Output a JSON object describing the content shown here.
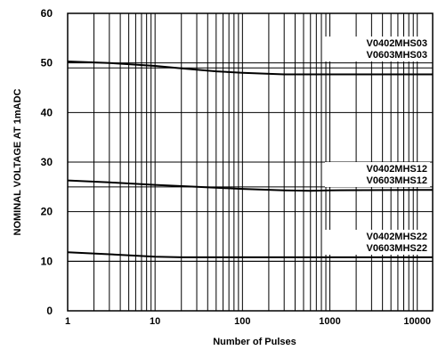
{
  "chart_data": {
    "type": "line",
    "xlabel": "Number of Pulses",
    "ylabel": "NOMINAL VOLTAGE AT 1mADC",
    "x_scale": "log",
    "xlim": [
      1,
      15000
    ],
    "ylim": [
      0,
      60
    ],
    "x_tick_values": [
      1,
      10,
      100,
      1000,
      10000
    ],
    "x_tick_labels": [
      "1",
      "10",
      "100",
      "1000",
      "10000"
    ],
    "y_tick_values": [
      0,
      10,
      20,
      30,
      40,
      50,
      60
    ],
    "y_tick_labels": [
      "0",
      "10",
      "20",
      "30",
      "40",
      "50",
      "60"
    ],
    "grid": true,
    "series": [
      {
        "labels": [
          "V0402MHS03",
          "V0603MHS03"
        ],
        "x": [
          1,
          3,
          10,
          20,
          50,
          100,
          300,
          1000,
          10000,
          15000
        ],
        "y": [
          50.3,
          50.0,
          49.4,
          48.9,
          48.3,
          48.0,
          47.7,
          47.7,
          47.7,
          47.7
        ],
        "ref_y": 49
      },
      {
        "labels": [
          "V0402MHS12",
          "V0603MHS12"
        ],
        "x": [
          1,
          3,
          10,
          30,
          100,
          300,
          600,
          1000,
          10000,
          15000
        ],
        "y": [
          26.3,
          25.9,
          25.4,
          25.0,
          24.6,
          24.3,
          24.2,
          24.3,
          24.4,
          24.4
        ],
        "ref_y": 25
      },
      {
        "labels": [
          "V0402MHS22",
          "V0603MHS22"
        ],
        "x": [
          1,
          3,
          10,
          20,
          100,
          1000,
          10000,
          15000
        ],
        "y": [
          11.8,
          11.4,
          10.9,
          10.8,
          10.8,
          10.8,
          10.8,
          10.8
        ],
        "ref_y": 10
      }
    ]
  }
}
